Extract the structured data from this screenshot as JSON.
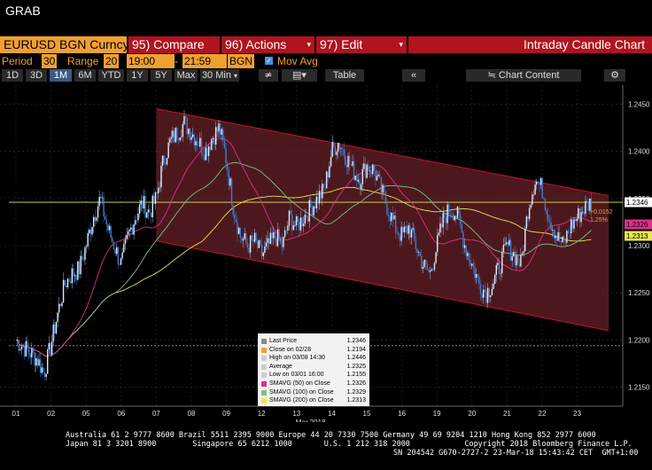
{
  "window_title": "GRAB",
  "toolbar": {
    "security": "EURUSD BGN Curncy",
    "compare": "95) Compare",
    "actions": "96) Actions",
    "edit": "97) Edit",
    "chart_title": "Intraday Candle Chart"
  },
  "params": {
    "period_label": "Period",
    "period_value": "30",
    "range_label": "Range",
    "range_value": "20",
    "time_from": "19:00",
    "dash": "-",
    "time_to": "21:59",
    "source": "BGN",
    "mov_avg_label": "Mov Avg"
  },
  "range_buttons": [
    "1D",
    "3D",
    "1M",
    "6M",
    "YTD",
    "1Y",
    "5Y",
    "Max"
  ],
  "interval": "30 Min",
  "table_label": "Table",
  "chart_content_label": "Chart Content",
  "chart_data": {
    "type": "candlestick",
    "x_tick_labels": [
      "01",
      "02",
      "05",
      "06",
      "07",
      "08",
      "09",
      "12",
      "13",
      "14",
      "15",
      "16",
      "19",
      "20",
      "21",
      "22",
      "23"
    ],
    "x_month_label": "Mar 2018",
    "y_tick_labels": [
      "1.2450",
      "1.2400",
      "1.2350",
      "1.2300",
      "1.2250",
      "1.2200",
      "1.2150"
    ],
    "ylim": [
      1.213,
      1.247
    ],
    "price_path": [
      [
        0,
        1.22
      ],
      [
        0.3,
        1.219
      ],
      [
        0.6,
        1.218
      ],
      [
        0.8,
        1.2165
      ],
      [
        1.0,
        1.2195
      ],
      [
        1.2,
        1.223
      ],
      [
        1.4,
        1.226
      ],
      [
        1.6,
        1.227
      ],
      [
        1.8,
        1.2275
      ],
      [
        2.0,
        1.23
      ],
      [
        2.2,
        1.233
      ],
      [
        2.4,
        1.235
      ],
      [
        2.6,
        1.232
      ],
      [
        2.8,
        1.23
      ],
      [
        3.0,
        1.228
      ],
      [
        3.2,
        1.231
      ],
      [
        3.4,
        1.233
      ],
      [
        3.6,
        1.2345
      ],
      [
        3.8,
        1.2335
      ],
      [
        4.0,
        1.235
      ],
      [
        4.2,
        1.239
      ],
      [
        4.4,
        1.241
      ],
      [
        4.6,
        1.242
      ],
      [
        4.8,
        1.243
      ],
      [
        5.0,
        1.242
      ],
      [
        5.2,
        1.241
      ],
      [
        5.4,
        1.24
      ],
      [
        5.6,
        1.2415
      ],
      [
        5.8,
        1.2425
      ],
      [
        6.0,
        1.239
      ],
      [
        6.2,
        1.234
      ],
      [
        6.4,
        1.231
      ],
      [
        6.6,
        1.23
      ],
      [
        6.8,
        1.2305
      ],
      [
        7.0,
        1.229
      ],
      [
        7.2,
        1.23
      ],
      [
        7.4,
        1.231
      ],
      [
        7.6,
        1.23
      ],
      [
        7.8,
        1.233
      ],
      [
        8.0,
        1.232
      ],
      [
        8.2,
        1.233
      ],
      [
        8.4,
        1.234
      ],
      [
        8.6,
        1.235
      ],
      [
        8.8,
        1.236
      ],
      [
        9.0,
        1.24
      ],
      [
        9.2,
        1.241
      ],
      [
        9.4,
        1.2395
      ],
      [
        9.6,
        1.238
      ],
      [
        9.8,
        1.237
      ],
      [
        10.0,
        1.2385
      ],
      [
        10.2,
        1.238
      ],
      [
        10.4,
        1.236
      ],
      [
        10.6,
        1.234
      ],
      [
        10.8,
        1.232
      ],
      [
        11.0,
        1.231
      ],
      [
        11.2,
        1.232
      ],
      [
        11.4,
        1.23
      ],
      [
        11.6,
        1.228
      ],
      [
        11.8,
        1.227
      ],
      [
        12.0,
        1.23
      ],
      [
        12.2,
        1.233
      ],
      [
        12.4,
        1.234
      ],
      [
        12.6,
        1.233
      ],
      [
        12.8,
        1.23
      ],
      [
        13.0,
        1.228
      ],
      [
        13.2,
        1.226
      ],
      [
        13.4,
        1.225
      ],
      [
        13.6,
        1.226
      ],
      [
        13.8,
        1.228
      ],
      [
        14.0,
        1.23
      ],
      [
        14.2,
        1.229
      ],
      [
        14.4,
        1.228
      ],
      [
        14.6,
        1.234
      ],
      [
        14.8,
        1.237
      ],
      [
        15.0,
        1.236
      ],
      [
        15.2,
        1.233
      ],
      [
        15.4,
        1.231
      ],
      [
        15.6,
        1.23
      ],
      [
        15.8,
        1.232
      ],
      [
        16.0,
        1.233
      ],
      [
        16.2,
        1.234
      ],
      [
        16.4,
        1.2346
      ]
    ],
    "horizontal_lines": [
      {
        "name": "last-price-line",
        "value": 1.2346,
        "color": "#e8e850"
      },
      {
        "name": "close-line",
        "value": 1.2194,
        "color": "#e87890"
      }
    ],
    "channel": {
      "upper": [
        [
          4.0,
          1.2445
        ],
        [
          16.9,
          1.2353
        ]
      ],
      "lower": [
        [
          4.0,
          1.2305
        ],
        [
          16.9,
          1.221
        ]
      ]
    },
    "annotation": {
      "change": "+0.0152",
      "pct": "1.25%"
    },
    "price_tags": [
      {
        "value": 1.2346,
        "label": "1.2346",
        "bg": "#ffffff",
        "fg": "#000000"
      },
      {
        "value": 1.2326,
        "label": "1.2326",
        "bg": "#e0308a",
        "fg": "#000000"
      },
      {
        "value": 1.2313,
        "label": "1.2313",
        "bg": "#e8e850",
        "fg": "#000000"
      }
    ],
    "legend": [
      {
        "name": "Last Price",
        "value": "1.2346",
        "color": "#ffffff"
      },
      {
        "name": "Close on 02/28",
        "value": "1.2194",
        "color": "#f0a030"
      },
      {
        "name": "High on 03/08 14:30",
        "value": "1.2446",
        "color": "#cccccc"
      },
      {
        "name": "Average",
        "value": "1.2325",
        "color": "#cccccc"
      },
      {
        "name": "Low on 03/01 16:00",
        "value": "1.2155",
        "color": "#cccccc"
      },
      {
        "name": "SMAVG (50) on Close",
        "value": "1.2326",
        "color": "#e0308a"
      },
      {
        "name": "SMAVG (100) on Close",
        "value": "1.2329",
        "color": "#80c080"
      },
      {
        "name": "SMAVG (200) on Close",
        "value": "1.2313",
        "color": "#e8e850"
      }
    ]
  },
  "footer": {
    "line1": "Australia 61 2 9777 8600 Brazil 5511 2395 9000 Europe 44 20 7330 7500 Germany 49 69 9204 1210 Hong Kong 852 2977 6000",
    "line2": "Japan 81 3 3201 8900        Singapore 65 6212 1000       U.S. 1 212 318 2000            Copyright 2018 Bloomberg Finance L.P.",
    "line3": "SN 204542 G670-2727-2 23-Mar-18 15:43:42 CET  GMT+1:00"
  },
  "colors": {
    "orange": "#f0a030",
    "red_bar": "#b0141e",
    "channel_fill": "#5a1c22",
    "channel_line": "#c8102e"
  }
}
